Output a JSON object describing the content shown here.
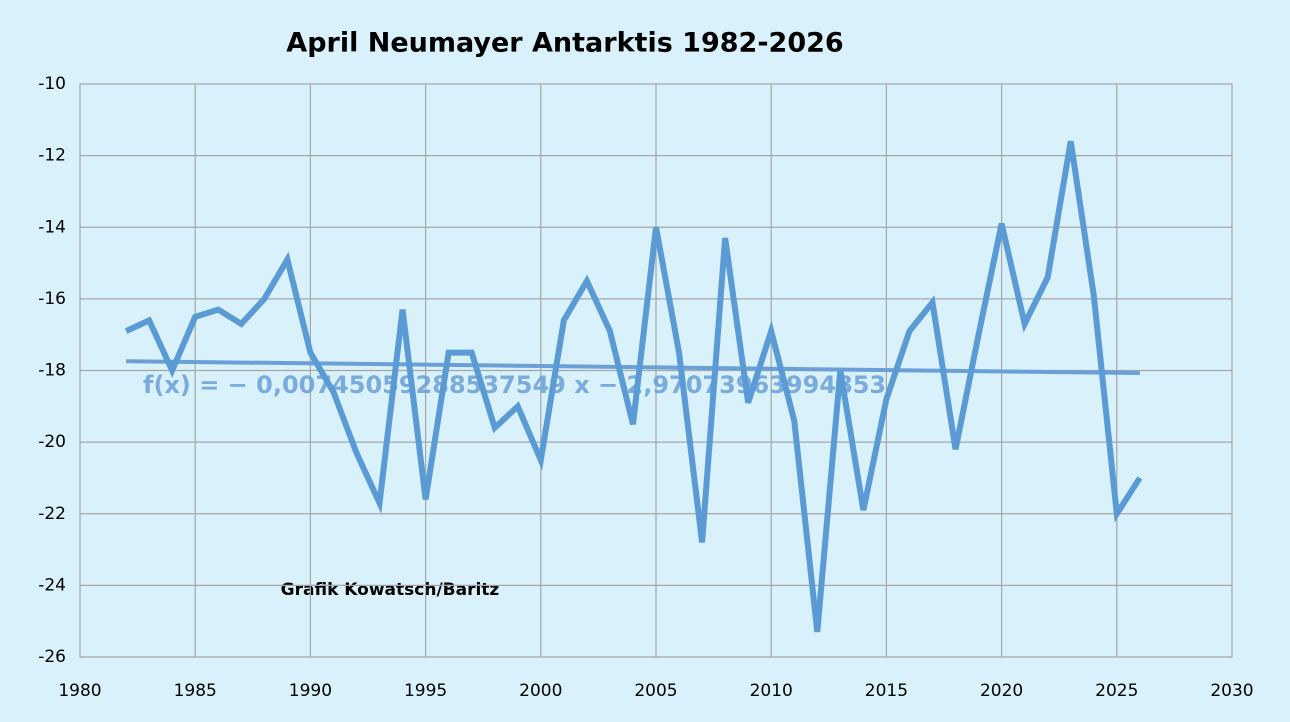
{
  "chart_data": {
    "type": "line",
    "title": "April Neumayer Antarktis 1982-2026",
    "annotation": "Grafik Kowatsch/Baritz",
    "trend_label": "f(x) = − 0,00745059288537549 x − 2,97073963994853",
    "x": [
      1982,
      1983,
      1984,
      1985,
      1986,
      1987,
      1988,
      1989,
      1990,
      1991,
      1992,
      1993,
      1994,
      1995,
      1996,
      1997,
      1998,
      1999,
      2000,
      2001,
      2002,
      2003,
      2004,
      2005,
      2006,
      2007,
      2008,
      2009,
      2010,
      2011,
      2012,
      2013,
      2014,
      2015,
      2016,
      2017,
      2018,
      2019,
      2020,
      2021,
      2022,
      2023,
      2024,
      2025,
      2026
    ],
    "series": [
      {
        "color": "#5b9bd5",
        "values": [
          -16.9,
          -16.6,
          -18.0,
          -16.5,
          -16.3,
          -16.7,
          -16.0,
          -14.9,
          -17.5,
          -18.6,
          -20.3,
          -21.7,
          -16.3,
          -21.6,
          -17.5,
          -17.5,
          -19.6,
          -19.0,
          -20.5,
          -16.6,
          -15.5,
          -16.9,
          -19.5,
          -14.0,
          -17.5,
          -22.8,
          -14.3,
          -18.9,
          -16.9,
          -19.4,
          -25.3,
          -18.0,
          -21.9,
          -18.8,
          -16.9,
          -16.1,
          -20.2,
          -17.0,
          -13.9,
          -16.7,
          -15.4,
          -11.6,
          -15.9,
          -22.0,
          -21.0
        ]
      }
    ],
    "trend": {
      "color": "#6a9fd8",
      "x": [
        1982,
        2026
      ],
      "values": [
        -17.74,
        -18.07
      ]
    },
    "xlim": [
      1980,
      2030
    ],
    "xticks": [
      1980,
      1985,
      1990,
      1995,
      2000,
      2005,
      2010,
      2015,
      2020,
      2025,
      2030
    ],
    "ylim": [
      -26,
      -10
    ],
    "yticks": [
      -10,
      -12,
      -14,
      -16,
      -18,
      -20,
      -22,
      -24,
      -26
    ],
    "grid": true
  }
}
